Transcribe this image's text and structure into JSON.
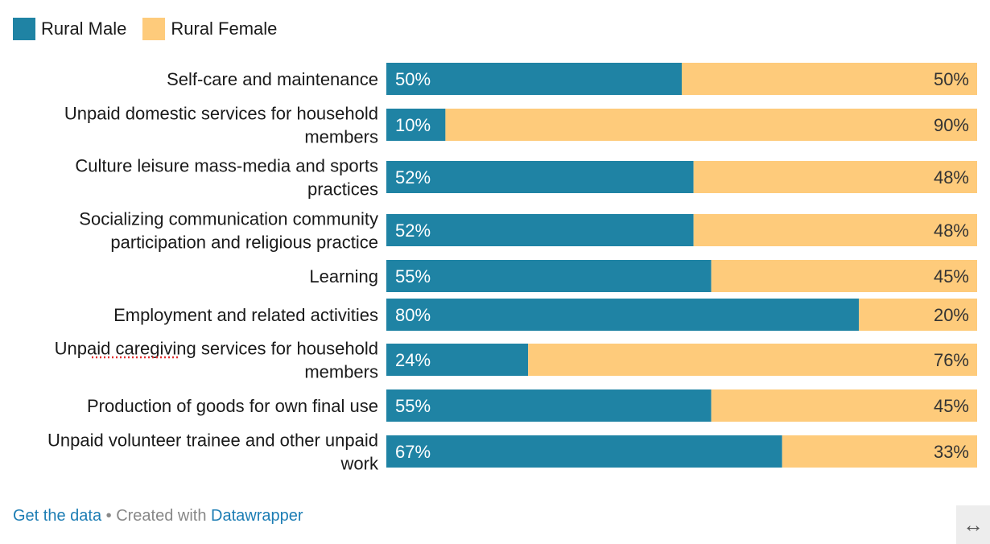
{
  "legend": {
    "items": [
      {
        "label": "Rural Male",
        "color": "#1f83a4"
      },
      {
        "label": "Rural Female",
        "color": "#fecb7b"
      }
    ]
  },
  "chart_data": {
    "type": "bar",
    "orientation": "horizontal-stacked-100",
    "categories": [
      [
        "Self-care and maintenance"
      ],
      [
        "Unpaid domestic services for household",
        "members"
      ],
      [
        "Culture leisure mass-media and sports",
        "practices"
      ],
      [
        "Socializing communication community",
        "participation and religious practice"
      ],
      [
        "Learning"
      ],
      [
        "Employment and related activities"
      ],
      [
        "Unpaid caregiving services for household",
        "members"
      ],
      [
        "Production of goods for own final use"
      ],
      [
        "Unpaid volunteer trainee and other unpaid",
        "work"
      ]
    ],
    "series": [
      {
        "name": "Rural Male",
        "color": "#1f83a4",
        "values": [
          50,
          10,
          52,
          52,
          55,
          80,
          24,
          55,
          67
        ],
        "labels": [
          "50%",
          "10%",
          "52%",
          "52%",
          "55%",
          "80%",
          "24%",
          "55%",
          "67%"
        ]
      },
      {
        "name": "Rural Female",
        "color": "#fecb7b",
        "values": [
          50,
          90,
          48,
          48,
          45,
          20,
          76,
          45,
          33
        ],
        "labels": [
          "50%",
          "90%",
          "48%",
          "48%",
          "45%",
          "20%",
          "76%",
          "45%",
          "33%"
        ]
      }
    ],
    "xlim": [
      0,
      100
    ],
    "legend_position": "top-left"
  },
  "footer": {
    "get_data": "Get the data",
    "separator": " • Created with ",
    "tool": "Datawrapper"
  },
  "expand_icon": "↔"
}
